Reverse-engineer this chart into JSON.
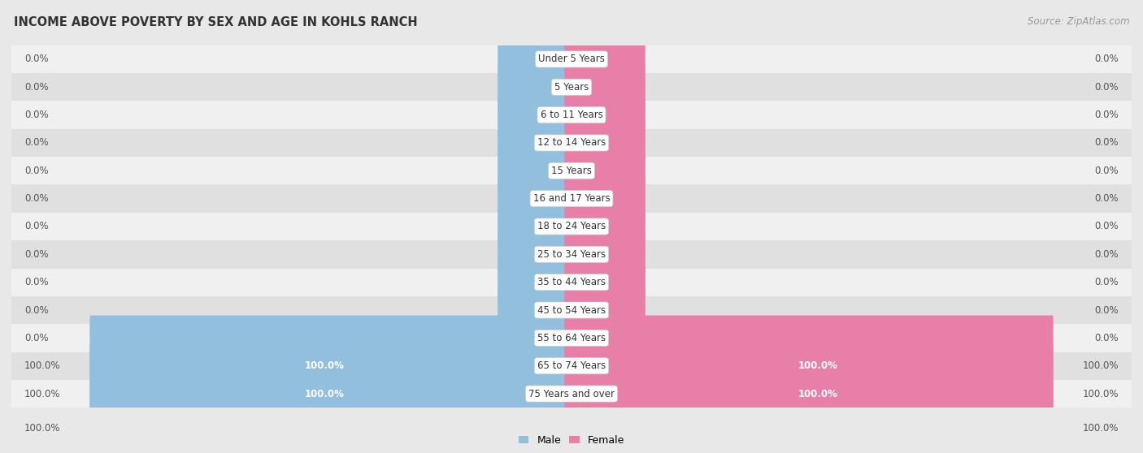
{
  "title": "INCOME ABOVE POVERTY BY SEX AND AGE IN KOHLS RANCH",
  "source": "Source: ZipAtlas.com",
  "categories": [
    "Under 5 Years",
    "5 Years",
    "6 to 11 Years",
    "12 to 14 Years",
    "15 Years",
    "16 and 17 Years",
    "18 to 24 Years",
    "25 to 34 Years",
    "35 to 44 Years",
    "45 to 54 Years",
    "55 to 64 Years",
    "65 to 74 Years",
    "75 Years and over"
  ],
  "male_values": [
    0.0,
    0.0,
    0.0,
    0.0,
    0.0,
    0.0,
    0.0,
    0.0,
    0.0,
    0.0,
    0.0,
    100.0,
    100.0
  ],
  "female_values": [
    0.0,
    0.0,
    0.0,
    0.0,
    0.0,
    0.0,
    0.0,
    0.0,
    0.0,
    0.0,
    0.0,
    100.0,
    100.0
  ],
  "male_color": "#92bfdd",
  "female_color": "#e87fa8",
  "male_label": "Male",
  "female_label": "Female",
  "bg_color": "#e8e8e8",
  "row_color_light": "#f0f0f0",
  "row_color_dark": "#e0e0e0",
  "title_fontsize": 10.5,
  "source_fontsize": 8.5,
  "value_fontsize": 8.5,
  "cat_fontsize": 8.5,
  "legend_fontsize": 9,
  "max_value": 100.0,
  "stub_value": 14.0,
  "bar_height": 0.62
}
